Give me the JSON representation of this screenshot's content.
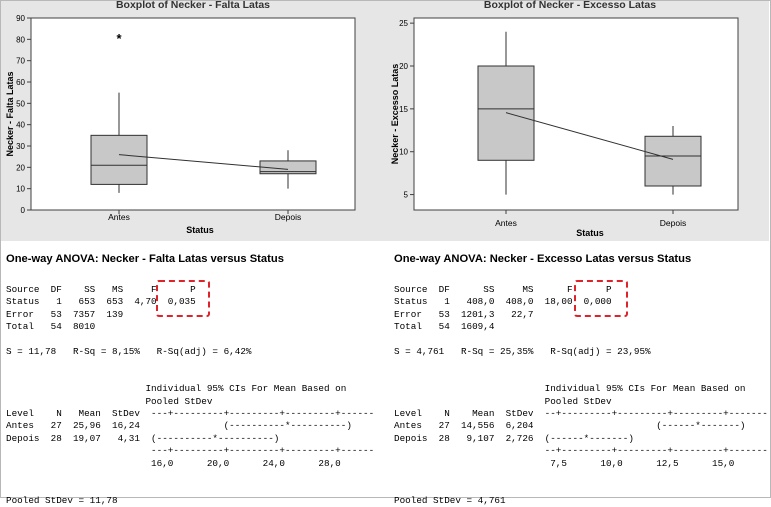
{
  "chart_data": [
    {
      "type": "boxplot",
      "title": "Boxplot of Necker - Falta Latas",
      "xlabel": "Status",
      "ylabel": "Necker - Falta Latas",
      "categories": [
        "Antes",
        "Depois"
      ],
      "ylim": [
        0,
        90
      ],
      "yticks": [
        0,
        10,
        20,
        30,
        40,
        50,
        60,
        70,
        80,
        90
      ],
      "boxes": [
        {
          "category": "Antes",
          "whisker_low": 8,
          "q1": 12,
          "median": 21,
          "q3": 35,
          "whisker_high": 55,
          "outliers": [
            81
          ]
        },
        {
          "category": "Depois",
          "whisker_low": 10,
          "q1": 17,
          "median": 18,
          "q3": 23,
          "whisker_high": 28,
          "outliers": []
        }
      ],
      "mean_connect": [
        25.96,
        19.07
      ],
      "outlier_symbol": "*"
    },
    {
      "type": "boxplot",
      "title": "Boxplot of Necker - Excesso Latas",
      "xlabel": "Status",
      "ylabel": "Necker - Excesso Latas",
      "categories": [
        "Antes",
        "Depois"
      ],
      "ylim": [
        3.2,
        25.6
      ],
      "yticks": [
        5,
        10,
        15,
        20,
        25
      ],
      "boxes": [
        {
          "category": "Antes",
          "whisker_low": 5,
          "q1": 9,
          "median": 15,
          "q3": 20,
          "whisker_high": 24,
          "outliers": []
        },
        {
          "category": "Depois",
          "whisker_low": 5,
          "q1": 6,
          "median": 9.5,
          "q3": 11.8,
          "whisker_high": 13,
          "outliers": []
        }
      ],
      "mean_connect": [
        14.556,
        9.107
      ]
    }
  ],
  "colors": {
    "box_fill": "#c8c8c8",
    "background": "#e6e6e6",
    "highlight": "#e0232a",
    "title": "#333333"
  },
  "anova": [
    {
      "heading": "One-way ANOVA: Necker - Falta Latas versus Status",
      "table_lines": [
        "Source  DF    SS   MS     F      P",
        "Status   1   653  653  4,70  0,035",
        "Error   53  7357  139",
        "Total   54  8010"
      ],
      "fit_line": "S = 11,78   R-Sq = 8,15%   R-Sq(adj) = 6,42%",
      "ci_lines": [
        "                         Individual 95% CIs For Mean Based on",
        "                         Pooled StDev",
        "Level    N   Mean  StDev  ---+---------+---------+---------+------",
        "Antes   27  25,96  16,24               (----------*----------)",
        "Depois  28  19,07   4,31  (----------*----------)",
        "                          ---+---------+---------+---------+------",
        "                          16,0      20,0      24,0      28,0"
      ],
      "pooled": "Pooled StDev = 11,78"
    },
    {
      "heading": "One-way ANOVA: Necker - Excesso Latas versus Status",
      "table_lines": [
        "Source  DF      SS     MS      F      P",
        "Status   1   408,0  408,0  18,00  0,000",
        "Error   53  1201,3   22,7",
        "Total   54  1609,4"
      ],
      "fit_line": "S = 4,761   R-Sq = 25,35%   R-Sq(adj) = 23,95%",
      "ci_lines": [
        "                           Individual 95% CIs For Mean Based on",
        "                           Pooled StDev",
        "Level    N    Mean  StDev  --+---------+---------+---------+-------",
        "Antes   27  14,556  6,204                      (------*-------)",
        "Depois  28   9,107  2,726  (------*-------)",
        "                           --+---------+---------+---------+-------",
        "                            7,5      10,0      12,5      15,0"
      ],
      "pooled": "Pooled StDev = 4,761"
    }
  ]
}
